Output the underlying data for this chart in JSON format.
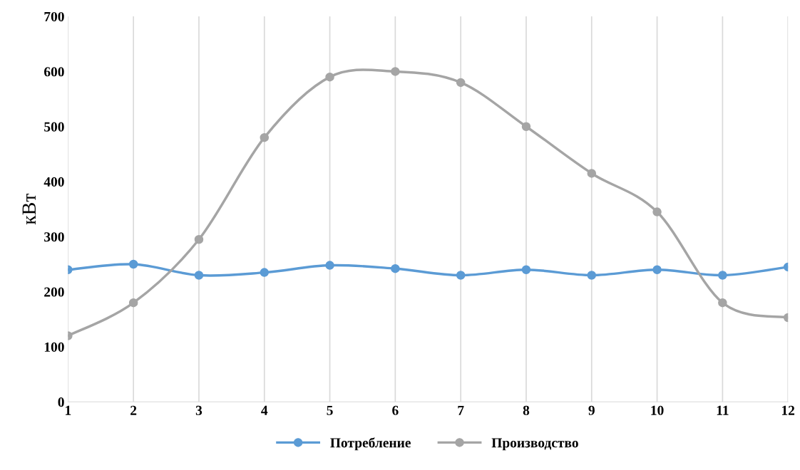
{
  "chart_data": {
    "type": "line",
    "ylabel": "кВт",
    "categories": [
      "1",
      "2",
      "3",
      "4",
      "5",
      "6",
      "7",
      "8",
      "9",
      "10",
      "11",
      "12"
    ],
    "series": [
      {
        "name": "Потребление",
        "color": "#5b9bd5",
        "values": [
          240,
          250,
          230,
          235,
          248,
          242,
          230,
          240,
          230,
          240,
          230,
          245
        ]
      },
      {
        "name": "Производство",
        "color": "#a5a5a5",
        "values": [
          120,
          180,
          295,
          480,
          590,
          600,
          580,
          500,
          415,
          345,
          180,
          153
        ]
      }
    ],
    "ylim": [
      0,
      700
    ],
    "yticks": [
      0,
      100,
      200,
      300,
      400,
      500,
      600,
      700
    ],
    "grid": "x",
    "legend": "bottom",
    "marker": "circle",
    "line_style": "solid"
  }
}
